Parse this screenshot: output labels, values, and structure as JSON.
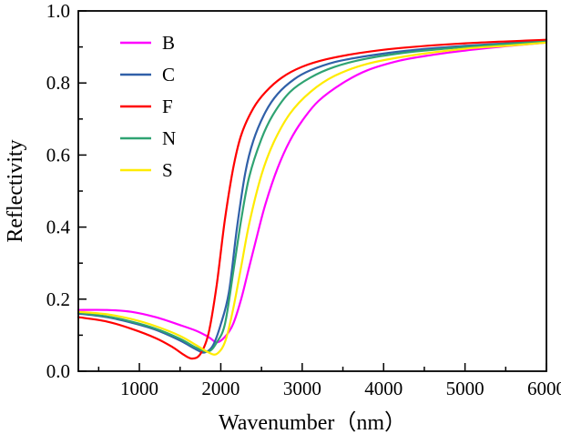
{
  "chart_data": {
    "type": "line",
    "title": "",
    "xlabel": "Wavenumber（nm）",
    "ylabel": "Reflectivity",
    "xlim": [
      250,
      6000
    ],
    "ylim": [
      0.0,
      1.0
    ],
    "x_ticks": [
      1000,
      2000,
      3000,
      4000,
      5000,
      6000
    ],
    "y_ticks": [
      0.0,
      0.2,
      0.4,
      0.6,
      0.8,
      1.0
    ],
    "x_minor_step": 500,
    "y_minor_step": 0.1,
    "grid": false,
    "legend_position": "top-left-inside",
    "axis_color": "#000000",
    "series": [
      {
        "name": "B",
        "color": "#FF00FF",
        "points": [
          [
            250,
            0.17
          ],
          [
            600,
            0.17
          ],
          [
            900,
            0.165
          ],
          [
            1200,
            0.15
          ],
          [
            1500,
            0.128
          ],
          [
            1700,
            0.112
          ],
          [
            1850,
            0.095
          ],
          [
            1950,
            0.08
          ],
          [
            2050,
            0.095
          ],
          [
            2150,
            0.13
          ],
          [
            2250,
            0.2
          ],
          [
            2350,
            0.29
          ],
          [
            2450,
            0.38
          ],
          [
            2550,
            0.465
          ],
          [
            2700,
            0.565
          ],
          [
            2850,
            0.64
          ],
          [
            3000,
            0.695
          ],
          [
            3200,
            0.75
          ],
          [
            3500,
            0.8
          ],
          [
            3800,
            0.835
          ],
          [
            4200,
            0.862
          ],
          [
            4600,
            0.878
          ],
          [
            5000,
            0.89
          ],
          [
            5500,
            0.902
          ],
          [
            6000,
            0.912
          ]
        ]
      },
      {
        "name": "C",
        "color": "#3060A8",
        "points": [
          [
            250,
            0.16
          ],
          [
            600,
            0.15
          ],
          [
            900,
            0.135
          ],
          [
            1200,
            0.115
          ],
          [
            1500,
            0.085
          ],
          [
            1700,
            0.06
          ],
          [
            1800,
            0.052
          ],
          [
            1900,
            0.07
          ],
          [
            2000,
            0.13
          ],
          [
            2100,
            0.22
          ],
          [
            2200,
            0.4
          ],
          [
            2300,
            0.55
          ],
          [
            2400,
            0.64
          ],
          [
            2550,
            0.72
          ],
          [
            2700,
            0.77
          ],
          [
            2900,
            0.81
          ],
          [
            3100,
            0.835
          ],
          [
            3400,
            0.858
          ],
          [
            3800,
            0.875
          ],
          [
            4300,
            0.89
          ],
          [
            5000,
            0.903
          ],
          [
            5500,
            0.91
          ],
          [
            6000,
            0.918
          ]
        ]
      },
      {
        "name": "F",
        "color": "#FF0000",
        "points": [
          [
            250,
            0.15
          ],
          [
            600,
            0.138
          ],
          [
            900,
            0.118
          ],
          [
            1200,
            0.092
          ],
          [
            1400,
            0.068
          ],
          [
            1550,
            0.045
          ],
          [
            1650,
            0.035
          ],
          [
            1750,
            0.048
          ],
          [
            1850,
            0.105
          ],
          [
            1950,
            0.24
          ],
          [
            2050,
            0.42
          ],
          [
            2150,
            0.56
          ],
          [
            2250,
            0.655
          ],
          [
            2400,
            0.73
          ],
          [
            2550,
            0.775
          ],
          [
            2750,
            0.815
          ],
          [
            3000,
            0.845
          ],
          [
            3300,
            0.866
          ],
          [
            3700,
            0.883
          ],
          [
            4200,
            0.897
          ],
          [
            5000,
            0.91
          ],
          [
            6000,
            0.92
          ]
        ]
      },
      {
        "name": "N",
        "color": "#2FA372",
        "points": [
          [
            250,
            0.162
          ],
          [
            600,
            0.152
          ],
          [
            900,
            0.138
          ],
          [
            1200,
            0.118
          ],
          [
            1500,
            0.09
          ],
          [
            1700,
            0.065
          ],
          [
            1850,
            0.055
          ],
          [
            1950,
            0.08
          ],
          [
            2050,
            0.13
          ],
          [
            2150,
            0.27
          ],
          [
            2250,
            0.42
          ],
          [
            2350,
            0.54
          ],
          [
            2500,
            0.645
          ],
          [
            2650,
            0.715
          ],
          [
            2850,
            0.775
          ],
          [
            3100,
            0.815
          ],
          [
            3400,
            0.845
          ],
          [
            3800,
            0.868
          ],
          [
            4300,
            0.885
          ],
          [
            5000,
            0.9
          ],
          [
            5500,
            0.908
          ],
          [
            6000,
            0.915
          ]
        ]
      },
      {
        "name": "S",
        "color": "#FFEB00",
        "points": [
          [
            250,
            0.165
          ],
          [
            600,
            0.158
          ],
          [
            900,
            0.145
          ],
          [
            1200,
            0.125
          ],
          [
            1500,
            0.098
          ],
          [
            1700,
            0.072
          ],
          [
            1850,
            0.052
          ],
          [
            1950,
            0.048
          ],
          [
            2050,
            0.08
          ],
          [
            2150,
            0.17
          ],
          [
            2250,
            0.29
          ],
          [
            2350,
            0.41
          ],
          [
            2500,
            0.545
          ],
          [
            2650,
            0.635
          ],
          [
            2850,
            0.715
          ],
          [
            3100,
            0.775
          ],
          [
            3400,
            0.82
          ],
          [
            3800,
            0.853
          ],
          [
            4300,
            0.875
          ],
          [
            5000,
            0.895
          ],
          [
            5500,
            0.903
          ],
          [
            6000,
            0.912
          ]
        ]
      }
    ]
  }
}
